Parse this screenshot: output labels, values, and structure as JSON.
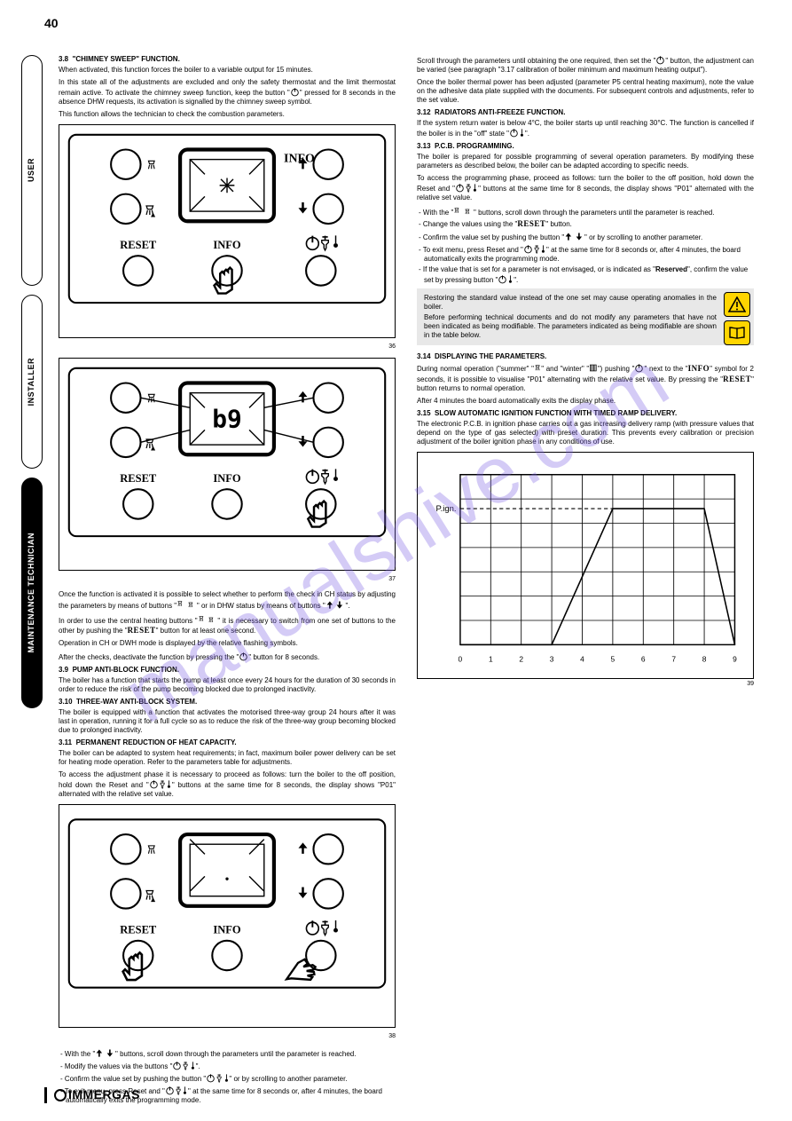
{
  "page_number": "40",
  "watermark_text": "manualshive.com",
  "footer_brand": "IMMERGAS",
  "left_tabs": {
    "user": "USER",
    "installer": "INSTALLER",
    "maintenance": "MAINTENANCE TECHNICIAN"
  },
  "panel_labels": {
    "fig36": "36",
    "fig37": "37",
    "fig38": "38",
    "fig39": "39"
  },
  "panel_text": {
    "reset": "RESET",
    "info": "INFO"
  },
  "col1": {
    "s_3_8": {
      "title_num": "3.8",
      "title_text": "\"CHIMNEY SWEEP\" FUNCTION.",
      "p1": "When activated, this function forces the boiler to a variable output for 15 minutes.",
      "p2": "In this state all of the adjustments are excluded and only the safety thermostat and the limit thermostat remain active. To activate the chimney sweep function, keep the button \"",
      "p2b": "\" pressed for 8 seconds in the absence DHW requests, its activation is signalled by the chimney sweep symbol.",
      "p3": "This function allows the technician to check the combustion parameters.",
      "p4a": "Once the function is activated it is possible to select whether to perform the check in CH status by adjusting the parameters by means of buttons \"",
      "p4b": "\" or in DHW status by means of buttons \"",
      "p4c": "\".",
      "p5a": "In order to use the central heating buttons \"",
      "p5b": "\" it is necessary to switch from one set of buttons to the other by pushing the \"",
      "p5c": "\" button for at least one second.",
      "p6": "Operation in CH or DWH mode is displayed by the relative flashing symbols.",
      "p7a": "After the checks, deactivate the function by pressing the \"",
      "p7b": "\" button for 8 seconds."
    },
    "s_3_9": {
      "title_num": "3.9",
      "title_text": "PUMP ANTI-BLOCK FUNCTION.",
      "p1": "The boiler has a function that starts the pump at least once every 24 hours for the duration of 30 seconds in order to reduce the risk of the pump becoming blocked due to prolonged inactivity."
    },
    "s_3_10": {
      "title_num": "3.10",
      "title_text": "THREE-WAY ANTI-BLOCK SYSTEM.",
      "p1": "The boiler is equipped with a function that activates the motorised three-way group 24 hours after it was last in operation, running it for a full cycle so as to reduce the risk of the three-way group becoming blocked due to prolonged inactivity."
    },
    "s_3_11": {
      "title_num": "3.11",
      "title_text": "PERMANENT REDUCTION OF HEAT CAPACITY.",
      "p1": "The boiler can be adapted to system heat requirements; in fact, maximum boiler power delivery can be set for heating mode operation. Refer to the parameters table for adjustments.",
      "p2a": "To access the adjustment phase it is necessary to proceed as follows: turn the boiler to the off position, hold down the Reset and \"",
      "p2b": "\" buttons at the same time for 8 seconds, the display shows \"P01\" alternated with the relative set value."
    },
    "tail": {
      "p1a": "With the \"",
      "p1b": "\" buttons, scroll down through the parameters until the parameter is reached.",
      "p2a": "Modify the values via the buttons \"",
      "p2b": "\".",
      "p3a": "Confirm the value set by pushing the button \"",
      "p3b": "\" or by scrolling to another parameter.",
      "p4a": "To exit menu, press Reset and \"",
      "p4b": "\" at the same time for 8 seconds or, after 4 minutes, the board automatically exits the programming mode."
    }
  },
  "col2": {
    "top": {
      "p1a": "Scroll through the parameters until obtaining the one required, then set the \"",
      "p1b": "\" button, the adjustment can be varied (see paragraph \"3.17 calibration of boiler minimum and maximum heating output\").",
      "p2": "Once the boiler thermal power has been adjusted (parameter P5 central heating maximum), note the value on the adhesive data plate supplied with the documents. For subsequent controls and adjustments, refer to the set value."
    },
    "s_3_12": {
      "title_num": "3.12",
      "title_text": "RADIATORS ANTI-FREEZE FUNCTION.",
      "p1a": "If the system return water is below 4°C, the boiler starts up until reaching 30°C. The function is cancelled if the boiler is in the \"off\" state \"",
      "p1b": "\"."
    },
    "s_3_13": {
      "title_num": "3.13",
      "title_text": "P.C.B. PROGRAMMING.",
      "p1": "The boiler is prepared for possible programming of several operation parameters. By modifying these parameters as described below, the boiler can be adapted according to specific needs.",
      "p2a": "To access the programming phase, proceed as follows: turn the boiler to the off position, hold down the Reset and \"",
      "p2b": "\" buttons at the same time for 8 seconds, the display shows \"P01\" alternated with the relative set value.",
      "p3a": "With the \"",
      "p3b": "\" buttons, scroll down through the parameters until the parameter is reached.",
      "p4a": "Change the values using the \"",
      "p4b": "\" button.",
      "p5a": "Confirm the value set by pushing the button \"",
      "p5b": "\" or by scrolling to another parameter.",
      "p6a": "To exit menu, press Reset and \"",
      "p6b": "\" at the same time for 8 seconds or, after 4 minutes, the board automatically exits the programming mode.",
      "p7a": "If the value that is set for a parameter is not envisaged, or is indicated as \"",
      "p7b": "Reserved",
      "p7c": "\", confirm the value set by pressing button \"",
      "p7d": "\"."
    },
    "warning": {
      "p1": "Restoring the standard value instead of the one set may cause operating anomalies in the boiler.",
      "p2": "Before performing technical documents and do not modify any parameters that have not been indicated as being modifiable. The parameters indicated as being modifiable are shown in the table below."
    },
    "s_3_14": {
      "title_num": "3.14",
      "title_text": "DISPLAYING THE PARAMETERS.",
      "p1a": "During normal operation (\"summer\" \"",
      "p1b": "\" and \"winter\" \"",
      "p1c": "\") pushing \"",
      "p1d": "\" next to the \"",
      "p1e": "\" symbol for 2 seconds, it is possible to visualise \"P01\" alternating with the relative set value. By pressing the \"",
      "p1f": "\" button returns to normal operation.",
      "p2": "After 4 minutes the board automatically exits the display phase."
    },
    "s_3_15": {
      "title_num": "3.15",
      "title_text": "SLOW AUTOMATIC IGNITION FUNCTION WITH TIMED RAMP DELIVERY.",
      "p1": "The electronic P.C.B. in ignition phase carries out a gas increasing delivery ramp (with pressure values that depend on the type of gas selected) with preset duration. This prevents every calibration or precision adjustment of the boiler ignition phase in any conditions of use."
    }
  },
  "chart": {
    "type": "line",
    "title": "P.ign.",
    "title_fontsize": 9,
    "x_ticks": [
      0,
      1,
      2,
      3,
      4,
      5,
      6,
      7,
      8,
      9
    ],
    "y_grid_lines": 7,
    "line_points": [
      {
        "x": 0,
        "y": 0
      },
      {
        "x": 3,
        "y": 0
      },
      {
        "x": 5,
        "y": 5.6
      },
      {
        "x": 8,
        "y": 5.6
      },
      {
        "x": 9,
        "y": 0
      }
    ],
    "dashed_ref_y": 5.6,
    "background_color": "#ffffff",
    "grid_color": "#000000",
    "line_color": "#000000",
    "line_width": 1.5,
    "axis_fontsize": 8
  }
}
